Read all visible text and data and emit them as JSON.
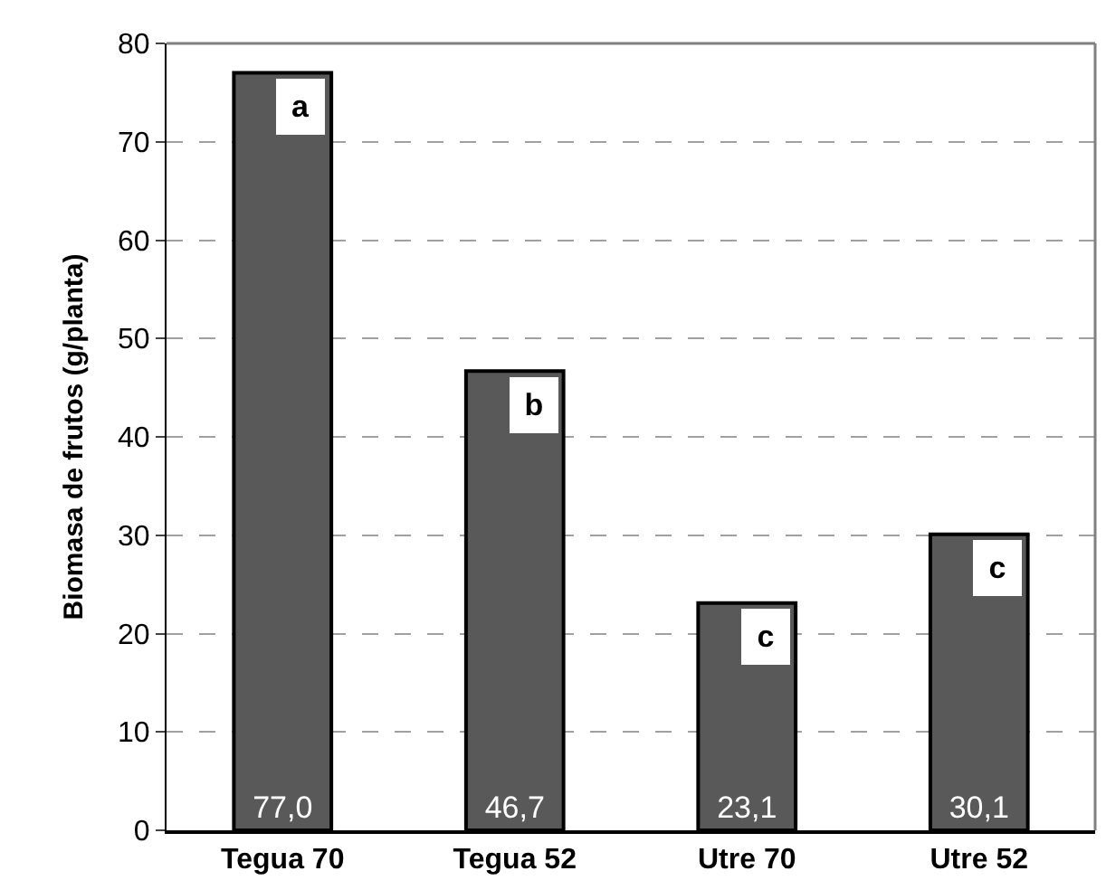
{
  "chart_data": {
    "type": "bar",
    "ylabel": "Biomasa de frutos (g/planta)",
    "categories": [
      "Tegua 70",
      "Tegua 52",
      "Utre 70",
      "Utre 52"
    ],
    "values": [
      77.0,
      46.7,
      23.1,
      30.1
    ],
    "value_labels": [
      "77,0",
      "46,7",
      "23,1",
      "30,1"
    ],
    "color": "#595959",
    "ylim": [
      0,
      80
    ],
    "yticks": [
      0,
      10,
      20,
      30,
      40,
      50,
      60,
      70,
      80
    ],
    "grid": "y",
    "legend": false,
    "annotations": [
      {
        "text": "a",
        "x": "Tegua 70",
        "y": 77.0
      },
      {
        "text": "b",
        "x": "Tegua 52",
        "y": 46.7
      },
      {
        "text": "c",
        "x": "Utre 70",
        "y": 23.1
      },
      {
        "text": "c",
        "x": "Utre 52",
        "y": 30.1
      }
    ]
  }
}
